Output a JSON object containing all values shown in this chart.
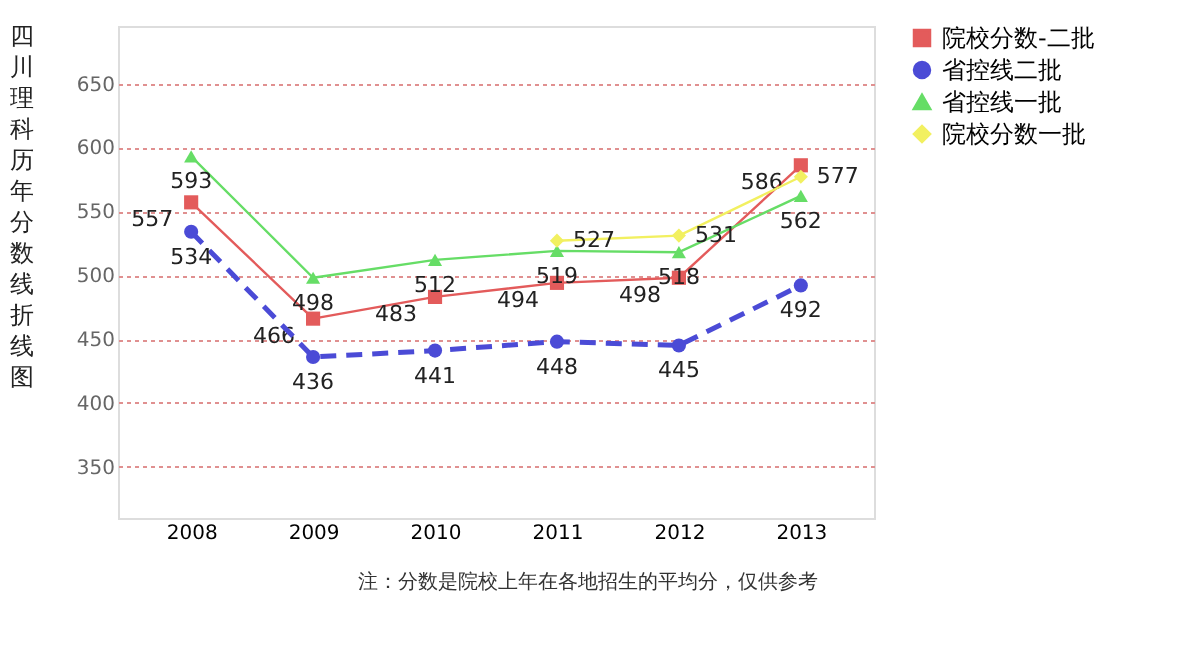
{
  "chart_data": {
    "type": "line",
    "ylabel": "四川理科历年分数线折线图",
    "categories": [
      "2008",
      "2009",
      "2010",
      "2011",
      "2012",
      "2013"
    ],
    "series": [
      {
        "name": "院校分数-二批",
        "color": "#e35b5b",
        "marker": "square",
        "line_style": "solid",
        "values": [
          557,
          466,
          483,
          494,
          498,
          586
        ]
      },
      {
        "name": "省控线二批",
        "color": "#4b4bd6",
        "marker": "circle",
        "line_style": "dashed",
        "values": [
          534,
          436,
          441,
          448,
          445,
          492
        ]
      },
      {
        "name": "省控线一批",
        "color": "#66dd66",
        "marker": "triangle",
        "line_style": "solid",
        "values": [
          593,
          498,
          512,
          519,
          518,
          562
        ]
      },
      {
        "name": "院校分数一批",
        "color": "#f2f060",
        "marker": "diamond",
        "line_style": "solid",
        "values": [
          null,
          null,
          null,
          527,
          531,
          577
        ]
      }
    ],
    "ylim": [
      310,
      695
    ],
    "yticks": [
      350,
      400,
      450,
      500,
      550,
      600,
      650
    ],
    "grid": "y",
    "legend": "right",
    "data_labels": true,
    "annotations": [
      "注：分数是院校上年在各地招生的平均分，仅供参考"
    ]
  }
}
